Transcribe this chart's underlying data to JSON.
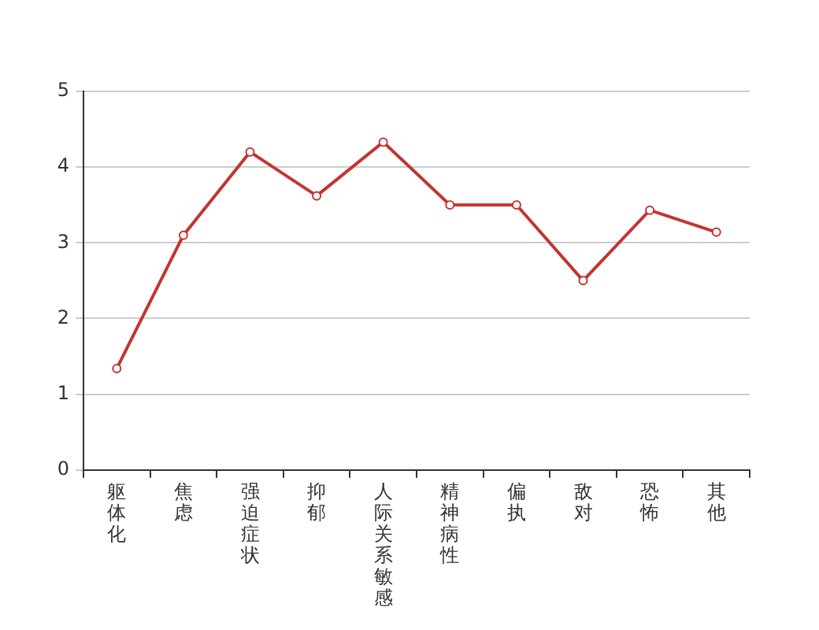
{
  "chart_data": {
    "type": "line",
    "categories": [
      "躯体化",
      "焦虑",
      "强迫症状",
      "抑郁",
      "人际关系敏感",
      "精神病性",
      "偏执",
      "敌对",
      "恐怖",
      "其他"
    ],
    "values": [
      1.34,
      3.1,
      4.2,
      3.62,
      4.33,
      3.5,
      3.5,
      2.5,
      3.43,
      3.14
    ],
    "color": "#c23531",
    "ylim": [
      0,
      5
    ],
    "yticks": [
      0,
      1,
      2,
      3,
      4,
      5
    ],
    "grid": "y",
    "marker": "circle"
  }
}
